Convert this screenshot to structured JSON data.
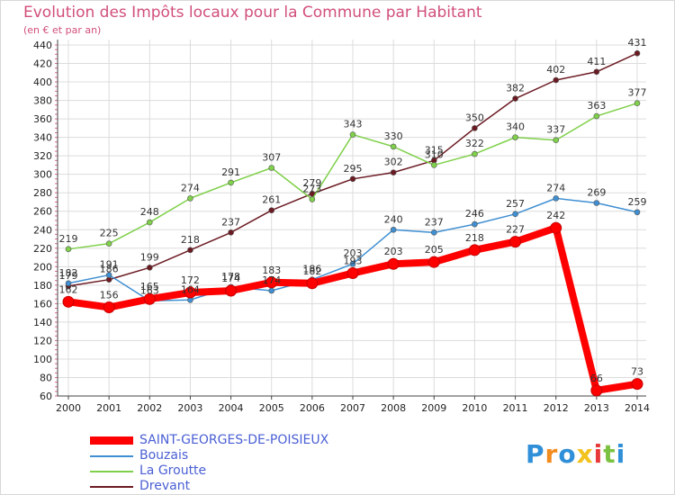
{
  "header": {
    "title": "Evolution des Impôts locaux pour la Commune par Habitant",
    "subtitle": "(en € et par an)"
  },
  "chart_data": {
    "type": "line",
    "title": "Evolution des Impôts locaux pour la Commune par Habitant",
    "subtitle": "(en € et par an)",
    "xlabel": "",
    "ylabel": "",
    "x": [
      "2000",
      "2001",
      "2002",
      "2003",
      "2004",
      "2005",
      "2006",
      "2007",
      "2008",
      "2009",
      "2010",
      "2011",
      "2012",
      "2013",
      "2014"
    ],
    "ylim": [
      60,
      440
    ],
    "yticks": [
      60,
      80,
      100,
      120,
      140,
      160,
      180,
      200,
      220,
      240,
      260,
      280,
      300,
      320,
      340,
      360,
      380,
      400,
      420,
      440
    ],
    "grid": true,
    "legend_position": "bottom-left",
    "series": [
      {
        "name": "Drevant",
        "color": "#6b1a22",
        "values": [
          179,
          186,
          199,
          218,
          237,
          261,
          279,
          295,
          302,
          315,
          350,
          382,
          402,
          411,
          431
        ]
      },
      {
        "name": "La Groutte",
        "color": "#7fd04a",
        "values": [
          219,
          225,
          248,
          274,
          291,
          307,
          273,
          343,
          330,
          310,
          322,
          340,
          337,
          363,
          377
        ]
      },
      {
        "name": "Bouzais",
        "color": "#3f8fd2",
        "values": [
          182,
          191,
          163,
          164,
          178,
          174,
          186,
          203,
          240,
          237,
          246,
          257,
          274,
          269,
          259
        ]
      },
      {
        "name": "SAINT-GEORGES-DE-POISIEUX",
        "color": "#ff0000",
        "values": [
          162,
          156,
          165,
          172,
          174,
          183,
          182,
          193,
          203,
          205,
          218,
          227,
          242,
          66,
          73
        ]
      }
    ]
  },
  "legend": {
    "items": [
      {
        "name": "SAINT-GEORGES-DE-POISIEUX",
        "color": "#ff0000"
      },
      {
        "name": "Bouzais",
        "color": "#3f8fd2"
      },
      {
        "name": "La Groutte",
        "color": "#7fd04a"
      },
      {
        "name": "Drevant",
        "color": "#6b1a22"
      }
    ]
  },
  "logo": {
    "letters": [
      "P",
      "r",
      "o",
      "x",
      "i",
      "t",
      "i"
    ],
    "colors": [
      "#2f8fd8",
      "#f28c1e",
      "#2f8fd8",
      "#f2c21e",
      "#e83a3a",
      "#7cc242",
      "#2f8fd8"
    ]
  }
}
